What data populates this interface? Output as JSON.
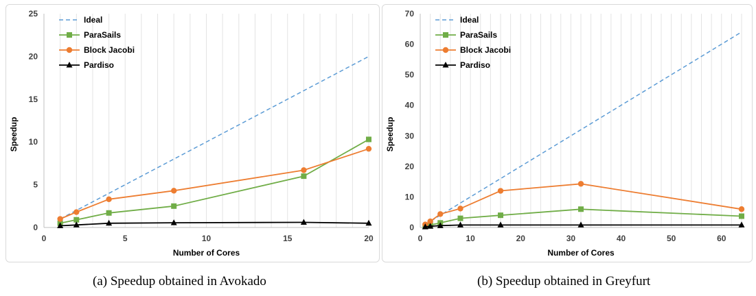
{
  "chart_data": [
    {
      "type": "line",
      "title": "",
      "xlabel": "Number of Cores",
      "ylabel": "Speedup",
      "xlim": [
        0,
        20
      ],
      "ylim": [
        0,
        25
      ],
      "xticks": [
        0,
        5,
        10,
        15,
        20
      ],
      "yticks": [
        0,
        5,
        10,
        15,
        20,
        25
      ],
      "grid": "vertical",
      "legend": "top-left",
      "series": [
        {
          "name": "Ideal",
          "color": "#5b9bd5",
          "style": "dashed",
          "marker": "none",
          "x": [
            1,
            20
          ],
          "y": [
            1,
            20
          ]
        },
        {
          "name": "ParaSails",
          "color": "#70ad47",
          "style": "solid",
          "marker": "square",
          "x": [
            1,
            2,
            4,
            8,
            16,
            20
          ],
          "y": [
            0.5,
            0.9,
            1.7,
            2.5,
            6.0,
            10.3
          ]
        },
        {
          "name": "Block Jacobi",
          "color": "#ed7d31",
          "style": "solid",
          "marker": "circle",
          "x": [
            1,
            2,
            4,
            8,
            16,
            20
          ],
          "y": [
            1.0,
            1.8,
            3.3,
            4.3,
            6.7,
            9.2
          ]
        },
        {
          "name": "Pardiso",
          "color": "#000000",
          "style": "solid",
          "marker": "triangle",
          "x": [
            1,
            2,
            4,
            8,
            16,
            20
          ],
          "y": [
            0.2,
            0.3,
            0.5,
            0.55,
            0.6,
            0.5
          ]
        }
      ]
    },
    {
      "type": "line",
      "title": "",
      "xlabel": "Number of Cores",
      "ylabel": "Speedup",
      "xlim": [
        0,
        64
      ],
      "ylim": [
        0,
        70
      ],
      "xticks": [
        0,
        10,
        20,
        30,
        40,
        50,
        60
      ],
      "yticks": [
        0,
        10,
        20,
        30,
        40,
        50,
        60,
        70
      ],
      "grid": "vertical",
      "legend": "top-left",
      "series": [
        {
          "name": "Ideal",
          "color": "#5b9bd5",
          "style": "dashed",
          "marker": "none",
          "x": [
            1,
            64
          ],
          "y": [
            1,
            64
          ]
        },
        {
          "name": "ParaSails",
          "color": "#70ad47",
          "style": "solid",
          "marker": "square",
          "x": [
            1,
            2,
            4,
            8,
            16,
            32,
            64
          ],
          "y": [
            0.5,
            0.8,
            1.5,
            3.0,
            4.0,
            6.0,
            3.7
          ]
        },
        {
          "name": "Block Jacobi",
          "color": "#ed7d31",
          "style": "solid",
          "marker": "circle",
          "x": [
            1,
            2,
            4,
            8,
            16,
            32,
            64
          ],
          "y": [
            1.0,
            2.0,
            4.4,
            6.2,
            12.0,
            14.3,
            6.0
          ]
        },
        {
          "name": "Pardiso",
          "color": "#000000",
          "style": "solid",
          "marker": "triangle",
          "x": [
            1,
            2,
            4,
            8,
            16,
            32,
            64
          ],
          "y": [
            0.2,
            0.4,
            0.6,
            0.8,
            0.8,
            0.8,
            0.8
          ]
        }
      ]
    }
  ],
  "captions": {
    "a": "(a) Speedup obtained in Avokado",
    "b": "(b) Speedup obtained in Greyfurt"
  }
}
